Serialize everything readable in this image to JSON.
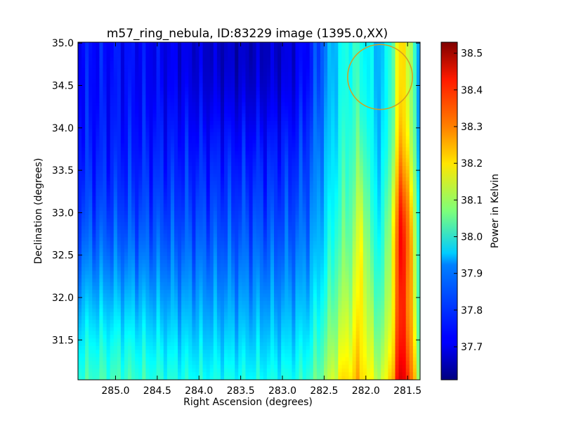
{
  "chart_data": {
    "type": "heatmap",
    "title": "m57_ring_nebula, ID:83229 image (1395.0,XX)",
    "xlabel": "Right Ascension (degrees)",
    "ylabel": "Declination (degrees)",
    "xlim": [
      285.45,
      281.35
    ],
    "ylim": [
      31.03,
      35.01
    ],
    "x_ticks": [
      285.0,
      284.5,
      284.0,
      283.5,
      283.0,
      282.5,
      282.0,
      281.5
    ],
    "x_tick_labels": [
      "285.0",
      "284.5",
      "284.0",
      "283.5",
      "283.0",
      "282.5",
      "282.0",
      "281.5"
    ],
    "y_ticks": [
      31.5,
      32.0,
      32.5,
      33.0,
      33.5,
      34.0,
      34.5,
      35.0
    ],
    "y_tick_labels": [
      "31.5",
      "32.0",
      "32.5",
      "33.0",
      "33.5",
      "34.0",
      "34.5",
      "35.0"
    ],
    "grid": false,
    "colormap": "jet",
    "colorbar": {
      "label": "Power in Kelvin",
      "range": [
        37.61,
        38.53
      ],
      "ticks": [
        37.7,
        37.8,
        37.9,
        38.0,
        38.1,
        38.2,
        38.3,
        38.4,
        38.5
      ],
      "tick_labels": [
        "37.7",
        "37.8",
        "37.9",
        "38.0",
        "38.1",
        "38.2",
        "38.3",
        "38.4",
        "38.5"
      ]
    },
    "marker_circle": {
      "ra": 281.83,
      "dec": 34.6,
      "radius_deg": 0.37,
      "color": "#d2a020"
    },
    "value_range": [
      37.61,
      38.53
    ]
  }
}
